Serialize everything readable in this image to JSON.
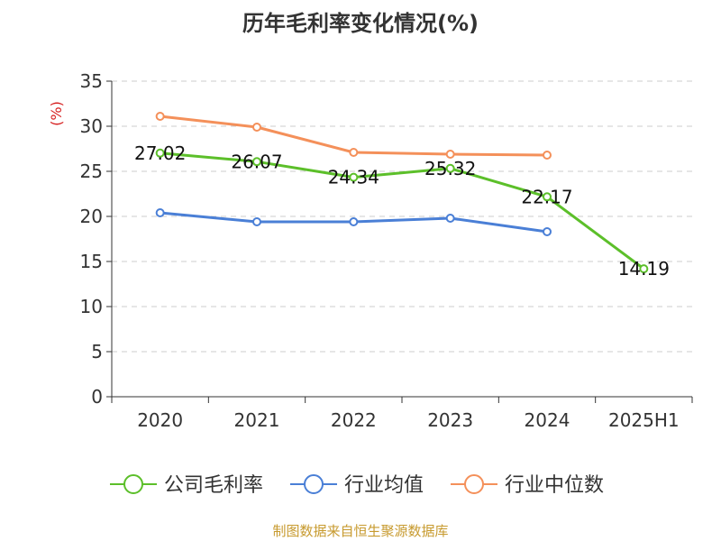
{
  "title": "历年毛利率变化情况(%)",
  "source": "制图数据来自恒生聚源数据库",
  "colors": {
    "公司毛利率": "#5cbf2a",
    "行业均值": "#4a7fd6",
    "行业中位数": "#f4905a",
    "unit_label": "#d62020",
    "grid": "#cccccc",
    "axis": "#333333"
  },
  "chart_data": {
    "type": "line",
    "title": "历年毛利率变化情况(%)",
    "ylabel": "(%)",
    "xlabel": "",
    "categories": [
      "2020",
      "2021",
      "2022",
      "2023",
      "2024",
      "2025H1"
    ],
    "ylim": [
      0,
      35
    ],
    "yticks": [
      0,
      5,
      10,
      15,
      20,
      25,
      30,
      35
    ],
    "grid": "dashed horizontal",
    "legend_position": "bottom",
    "series": [
      {
        "name": "公司毛利率",
        "values": [
          27.02,
          26.07,
          24.34,
          25.32,
          22.17,
          14.19
        ],
        "labels": [
          "27.02",
          "26.07",
          "24.34",
          "25.32",
          "22.17",
          "14.19"
        ]
      },
      {
        "name": "行业均值",
        "values": [
          20.4,
          19.4,
          19.4,
          19.8,
          18.3,
          null
        ]
      },
      {
        "name": "行业中位数",
        "values": [
          31.1,
          29.9,
          27.1,
          26.9,
          26.8,
          null
        ]
      }
    ]
  }
}
